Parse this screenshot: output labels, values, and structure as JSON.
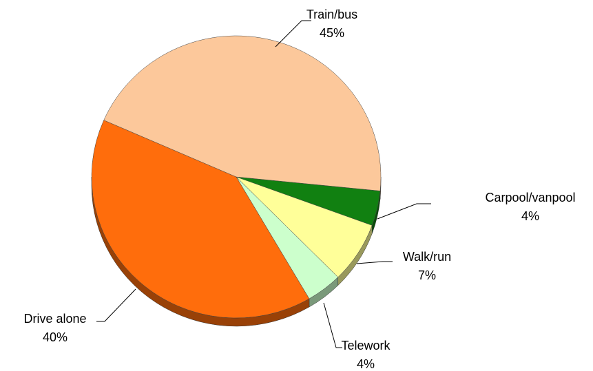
{
  "chart_data": {
    "type": "pie",
    "categories": [
      "Carpool/vanpool",
      "Walk/run",
      "Telework",
      "Drive alone",
      "Train/bus"
    ],
    "values": [
      4,
      7,
      4,
      40,
      45
    ],
    "value_labels": [
      "4%",
      "7%",
      "4%",
      "40%",
      "45%"
    ],
    "colors": [
      "#118011",
      "#FFFF99",
      "#CCFFCC",
      "#FF6D0C",
      "#FCC89B"
    ]
  }
}
